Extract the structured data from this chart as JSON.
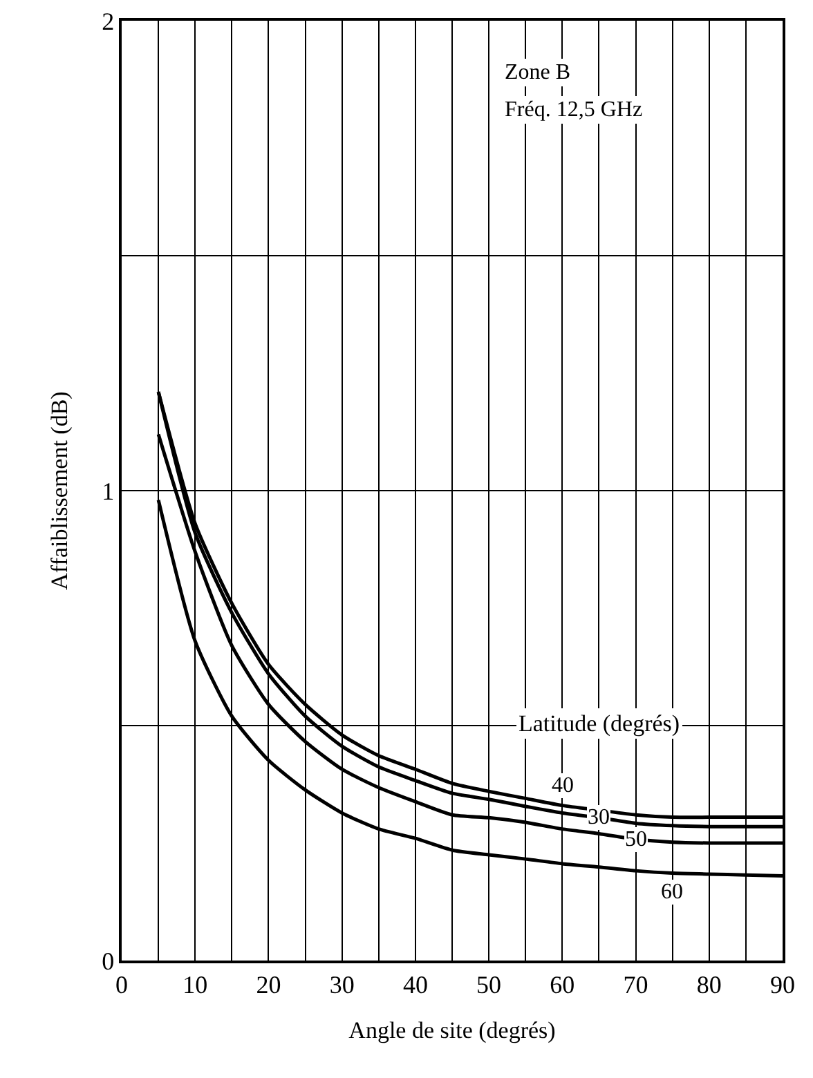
{
  "chart_data": {
    "type": "line",
    "xlabel": "Angle de site (degrés)",
    "ylabel": "Affaiblissement (dB)",
    "legend_title": "Latitude (degrés)",
    "annotations": [
      "Zone B",
      "Fréq. 12,5 GHz"
    ],
    "x": [
      5,
      10,
      15,
      20,
      25,
      30,
      35,
      40,
      45,
      50,
      55,
      60,
      65,
      70,
      75,
      80,
      85,
      90
    ],
    "series": [
      {
        "name": "40",
        "color": "#000000",
        "values": [
          1.21,
          0.93,
          0.76,
          0.63,
          0.545,
          0.48,
          0.436,
          0.407,
          0.377,
          0.36,
          0.345,
          0.33,
          0.32,
          0.31,
          0.305,
          0.305,
          0.305,
          0.305
        ]
      },
      {
        "name": "30",
        "color": "#000000",
        "values": [
          1.21,
          0.91,
          0.74,
          0.61,
          0.52,
          0.456,
          0.412,
          0.383,
          0.356,
          0.343,
          0.328,
          0.314,
          0.304,
          0.292,
          0.287,
          0.285,
          0.285,
          0.285
        ]
      },
      {
        "name": "50",
        "color": "#000000",
        "values": [
          1.12,
          0.87,
          0.67,
          0.545,
          0.466,
          0.407,
          0.368,
          0.338,
          0.31,
          0.304,
          0.294,
          0.28,
          0.27,
          0.258,
          0.252,
          0.25,
          0.25,
          0.25
        ]
      },
      {
        "name": "60",
        "color": "#000000",
        "values": [
          0.98,
          0.68,
          0.52,
          0.426,
          0.363,
          0.314,
          0.28,
          0.26,
          0.235,
          0.225,
          0.216,
          0.206,
          0.199,
          0.191,
          0.186,
          0.184,
          0.182,
          0.18
        ]
      }
    ],
    "xlim": [
      0,
      90
    ],
    "xticks": [
      0,
      {
        "value": 5,
        "label": null
      },
      10,
      {
        "value": 15,
        "label": null
      },
      20,
      {
        "value": 25,
        "label": null
      },
      30,
      {
        "value": 35,
        "label": null
      },
      40,
      {
        "value": 45,
        "label": null
      },
      50,
      {
        "value": 55,
        "label": null
      },
      60,
      {
        "value": 65,
        "label": null
      },
      70,
      {
        "value": 75,
        "label": null
      },
      80,
      {
        "value": 85,
        "label": null
      },
      90
    ],
    "ylim": [
      0,
      2
    ],
    "yticks": [
      0,
      {
        "value": 0.5,
        "label": null
      },
      1,
      {
        "value": 1.5,
        "label": null
      },
      2
    ],
    "grid": true,
    "legend": false,
    "marker": "none",
    "line_style": "solid"
  }
}
